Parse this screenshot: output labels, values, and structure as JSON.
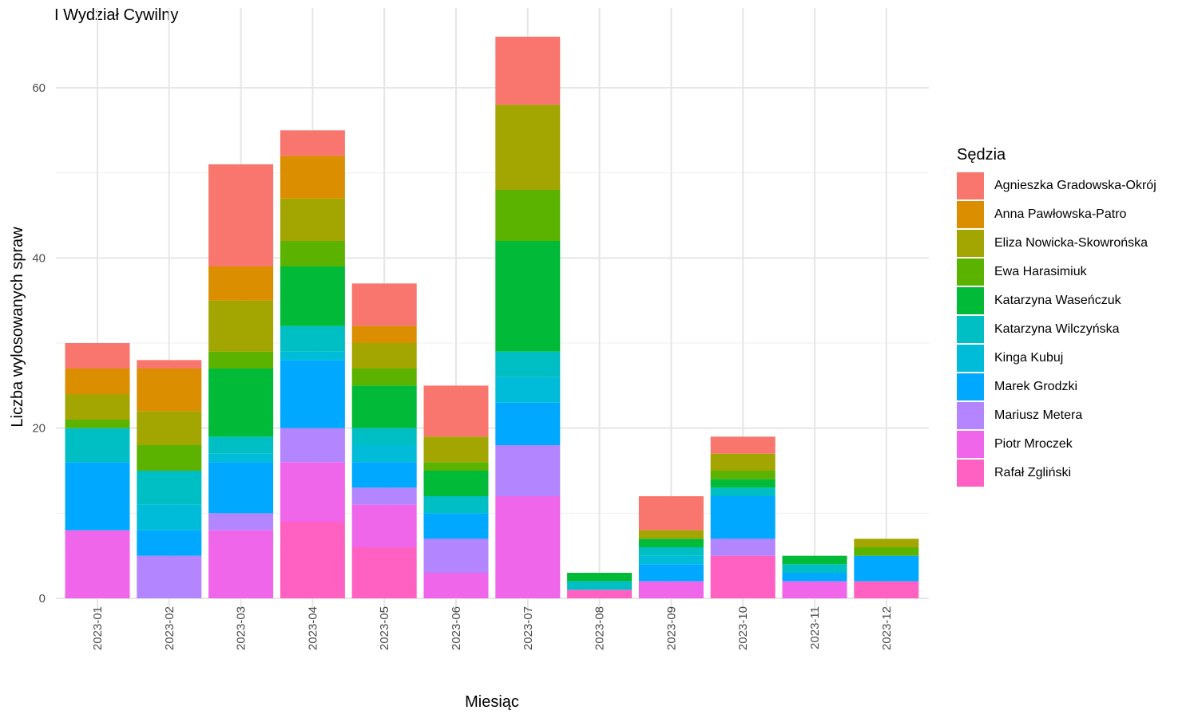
{
  "title": "I Wydział Cywilny",
  "chart_data": {
    "type": "bar",
    "stacked": true,
    "xlabel": "Miesiąc",
    "ylabel": "Liczba wylosowanych spraw",
    "ylim": [
      0,
      66
    ],
    "yticks": [
      0,
      20,
      40,
      60
    ],
    "grid": true,
    "legend_title": "Sędzia",
    "legend_position": "right",
    "categories": [
      "2023-01",
      "2023-02",
      "2023-03",
      "2023-04",
      "2023-05",
      "2023-06",
      "2023-07",
      "2023-08",
      "2023-09",
      "2023-10",
      "2023-11",
      "2023-12"
    ],
    "series": [
      {
        "name": "Rafał Zgliński",
        "color": "#FF61C3",
        "values": [
          0,
          0,
          0,
          9,
          6,
          0,
          0,
          1,
          0,
          5,
          0,
          2
        ]
      },
      {
        "name": "Piotr Mroczek",
        "color": "#F066EA",
        "values": [
          8,
          0,
          8,
          7,
          5,
          3,
          12,
          0,
          2,
          0,
          2,
          0
        ]
      },
      {
        "name": "Mariusz Metera",
        "color": "#B385FF",
        "values": [
          0,
          5,
          2,
          4,
          2,
          4,
          6,
          0,
          0,
          2,
          0,
          0
        ]
      },
      {
        "name": "Marek Grodzki",
        "color": "#00A9FF",
        "values": [
          8,
          3,
          6,
          8,
          3,
          3,
          5,
          0,
          2,
          5,
          1,
          3
        ]
      },
      {
        "name": "Kinga Kubuj",
        "color": "#00BCD8",
        "values": [
          0,
          3,
          1,
          1,
          2,
          0,
          3,
          0,
          1,
          0,
          0,
          0
        ]
      },
      {
        "name": "Katarzyna Wilczyńska",
        "color": "#00BFC4",
        "values": [
          4,
          4,
          2,
          3,
          2,
          2,
          3,
          1,
          1,
          1,
          1,
          0
        ]
      },
      {
        "name": "Katarzyna Waseńczuk",
        "color": "#00BA38",
        "values": [
          0,
          0,
          8,
          7,
          5,
          3,
          13,
          1,
          1,
          1,
          1,
          0
        ]
      },
      {
        "name": "Ewa Harasimiuk",
        "color": "#5BB300",
        "values": [
          1,
          3,
          2,
          3,
          2,
          1,
          6,
          0,
          0,
          1,
          0,
          1
        ]
      },
      {
        "name": "Eliza Nowicka-Skowrońska",
        "color": "#A3A500",
        "values": [
          3,
          4,
          6,
          5,
          3,
          3,
          10,
          0,
          1,
          2,
          0,
          1
        ]
      },
      {
        "name": "Anna Pawłowska-Patro",
        "color": "#DB8E00",
        "values": [
          3,
          5,
          4,
          5,
          2,
          0,
          0,
          0,
          0,
          0,
          0,
          0
        ]
      },
      {
        "name": "Agnieszka Gradowska-Okrój",
        "color": "#F8766D",
        "values": [
          3,
          1,
          12,
          3,
          5,
          6,
          8,
          0,
          4,
          2,
          0,
          0
        ]
      }
    ]
  },
  "legend_order": [
    "Agnieszka Gradowska-Okrój",
    "Anna Pawłowska-Patro",
    "Eliza Nowicka-Skowrońska",
    "Ewa Harasimiuk",
    "Katarzyna Waseńczuk",
    "Katarzyna Wilczyńska",
    "Kinga Kubuj",
    "Marek Grodzki",
    "Mariusz Metera",
    "Piotr Mroczek",
    "Rafał Zgliński"
  ]
}
